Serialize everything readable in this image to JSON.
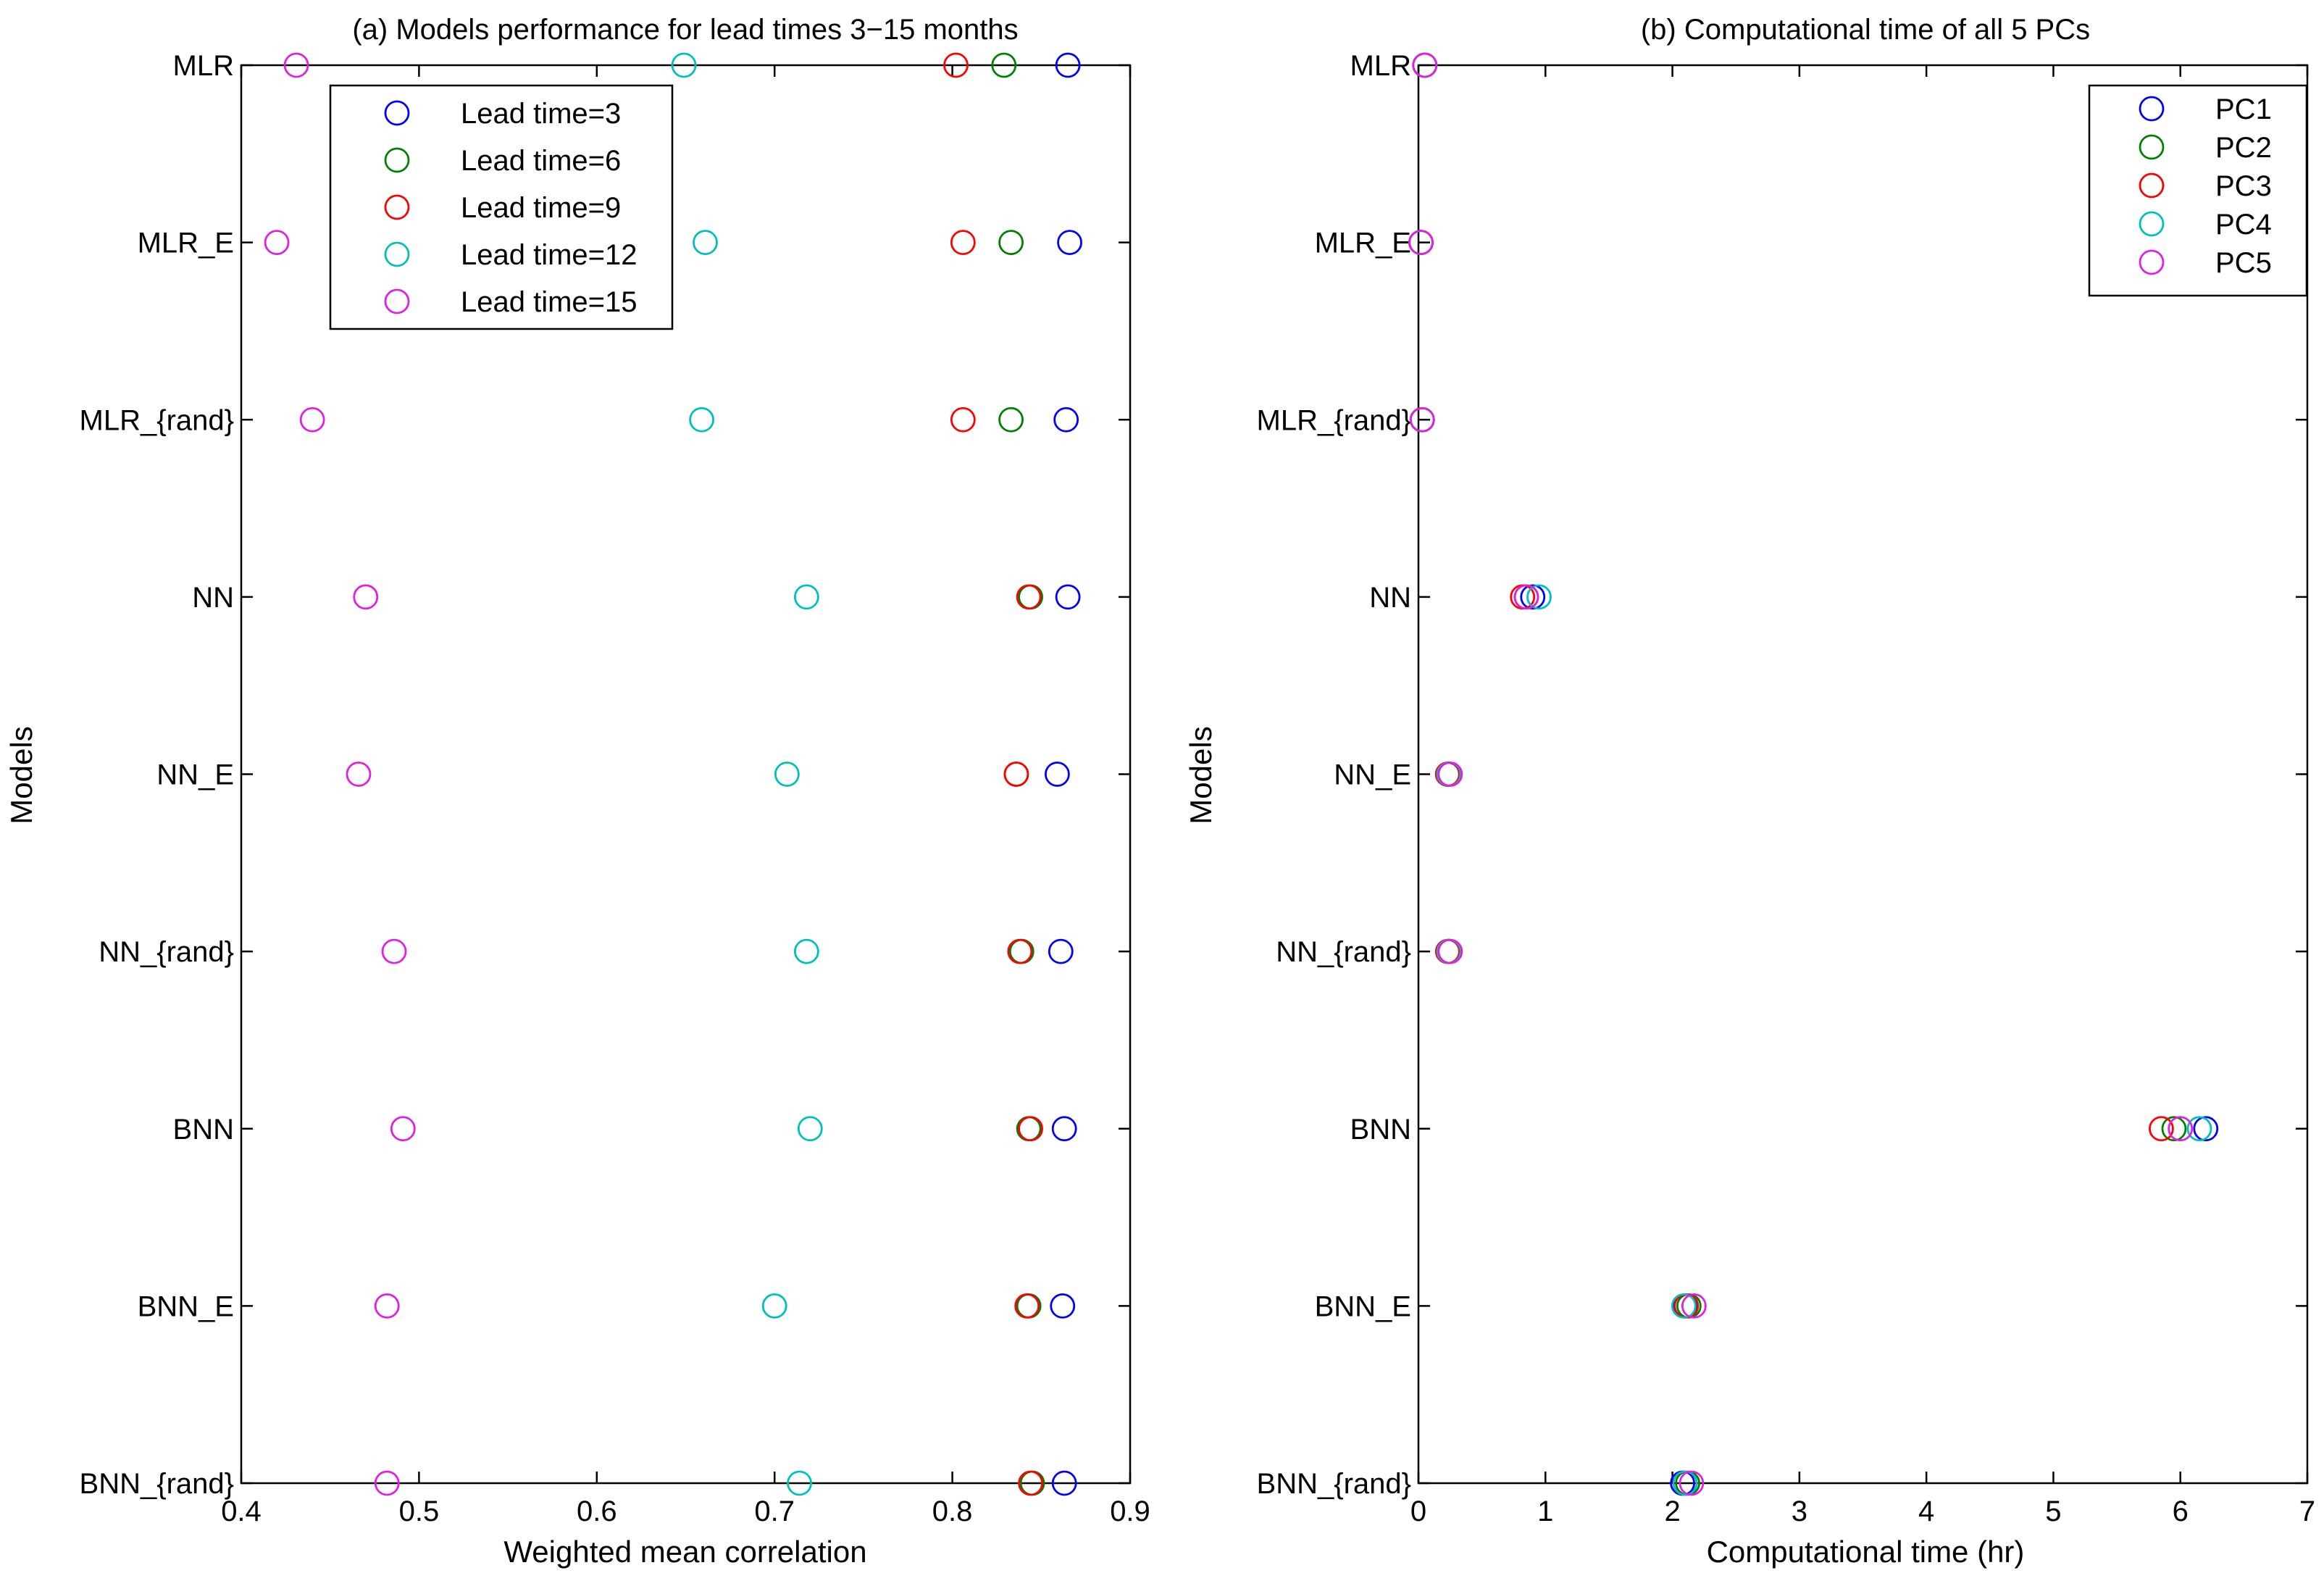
{
  "chart_data": [
    {
      "type": "scatter",
      "title": "(a) Models performance for lead times 3−15 months",
      "xlabel": "Weighted mean correlation",
      "ylabel": "Models",
      "xlim": [
        0.4,
        0.9
      ],
      "xticks": [
        "0.4",
        "0.5",
        "0.6",
        "0.7",
        "0.8",
        "0.9"
      ],
      "categories": [
        "MLR",
        "MLR_E",
        "MLR_{rand}",
        "NN",
        "NN_E",
        "NN_{rand}",
        "BNN",
        "BNN_E",
        "BNN_{rand}"
      ],
      "legend_position": "top-left",
      "series": [
        {
          "name": "Lead time=3",
          "color": "#0000ff",
          "values": [
            0.865,
            0.866,
            0.864,
            0.865,
            0.859,
            0.861,
            0.863,
            0.862,
            0.863
          ]
        },
        {
          "name": "Lead time=6",
          "color": "#008000",
          "values": [
            0.829,
            0.833,
            0.833,
            0.844,
            0.836,
            0.839,
            0.843,
            0.843,
            0.845
          ]
        },
        {
          "name": "Lead time=9",
          "color": "#ff0000",
          "values": [
            0.802,
            0.806,
            0.806,
            0.843,
            0.836,
            0.838,
            0.844,
            0.842,
            0.844
          ]
        },
        {
          "name": "Lead time=12",
          "color": "#00bfbf",
          "values": [
            0.649,
            0.661,
            0.659,
            0.718,
            0.707,
            0.718,
            0.72,
            0.7,
            0.714
          ]
        },
        {
          "name": "Lead time=15",
          "color": "#e020e0",
          "values": [
            0.431,
            0.42,
            0.44,
            0.47,
            0.466,
            0.486,
            0.491,
            0.482,
            0.482
          ]
        }
      ]
    },
    {
      "type": "scatter",
      "title": "(b) Computational time of all 5 PCs",
      "xlabel": "Computational time (hr)",
      "ylabel": "Models",
      "xlim": [
        0,
        7
      ],
      "xticks": [
        "0",
        "1",
        "2",
        "3",
        "4",
        "5",
        "6",
        "7"
      ],
      "categories": [
        "MLR",
        "MLR_E",
        "MLR_{rand}",
        "NN",
        "NN_E",
        "NN_{rand}",
        "BNN",
        "BNN_E",
        "BNN_{rand}"
      ],
      "legend_position": "top-right",
      "series": [
        {
          "name": "PC1",
          "color": "#0000ff",
          "values": [
            0.05,
            0.02,
            0.03,
            0.9,
            0.23,
            0.24,
            6.2,
            2.1,
            2.08
          ]
        },
        {
          "name": "PC2",
          "color": "#008000",
          "values": [
            0.05,
            0.02,
            0.03,
            0.85,
            0.24,
            0.24,
            5.95,
            2.13,
            2.12
          ]
        },
        {
          "name": "PC3",
          "color": "#ff0000",
          "values": [
            0.05,
            0.02,
            0.03,
            0.82,
            0.23,
            0.23,
            5.85,
            2.11,
            2.1
          ]
        },
        {
          "name": "PC4",
          "color": "#00bfbf",
          "values": [
            0.05,
            0.02,
            0.03,
            0.95,
            0.24,
            0.24,
            6.15,
            2.09,
            2.1
          ]
        },
        {
          "name": "PC5",
          "color": "#e020e0",
          "values": [
            0.05,
            0.02,
            0.03,
            0.85,
            0.25,
            0.25,
            6.0,
            2.17,
            2.15
          ]
        }
      ]
    }
  ]
}
